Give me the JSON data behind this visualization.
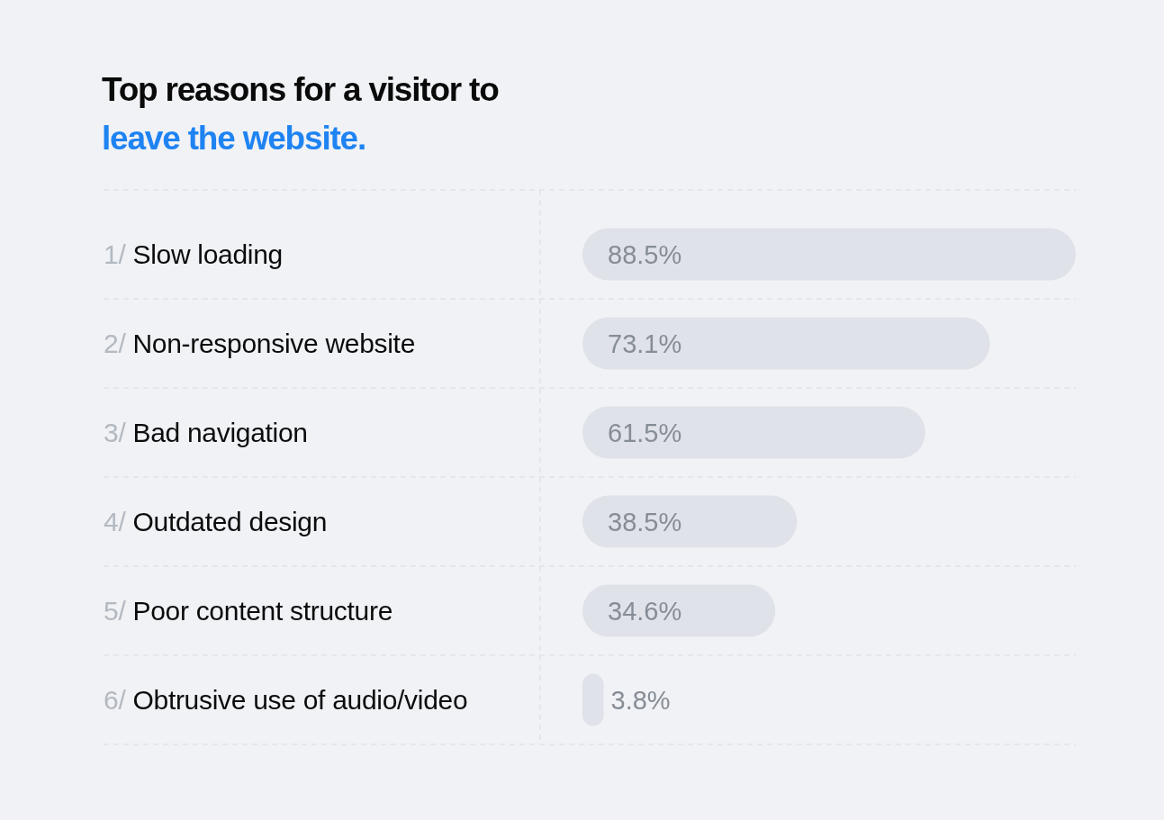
{
  "chart_data": {
    "type": "bar",
    "orientation": "horizontal",
    "title": "Top reasons for a visitor to",
    "subtitle": "leave the website.",
    "categories": [
      "1/ Slow loading",
      "2/ Non-responsive website",
      "3/ Bad navigation",
      "4/ Outdated design",
      "5/ Poor content structure",
      "6/ Obtrusive use of audio/video"
    ],
    "values": [
      88.5,
      73.1,
      61.5,
      38.5,
      34.6,
      3.8
    ],
    "color": "#dfe2e8",
    "value_labels": [
      "88.5%",
      "73.1%",
      "61.5%",
      "38.5%",
      "34.6%",
      "3.8%"
    ],
    "grid": true
  }
}
